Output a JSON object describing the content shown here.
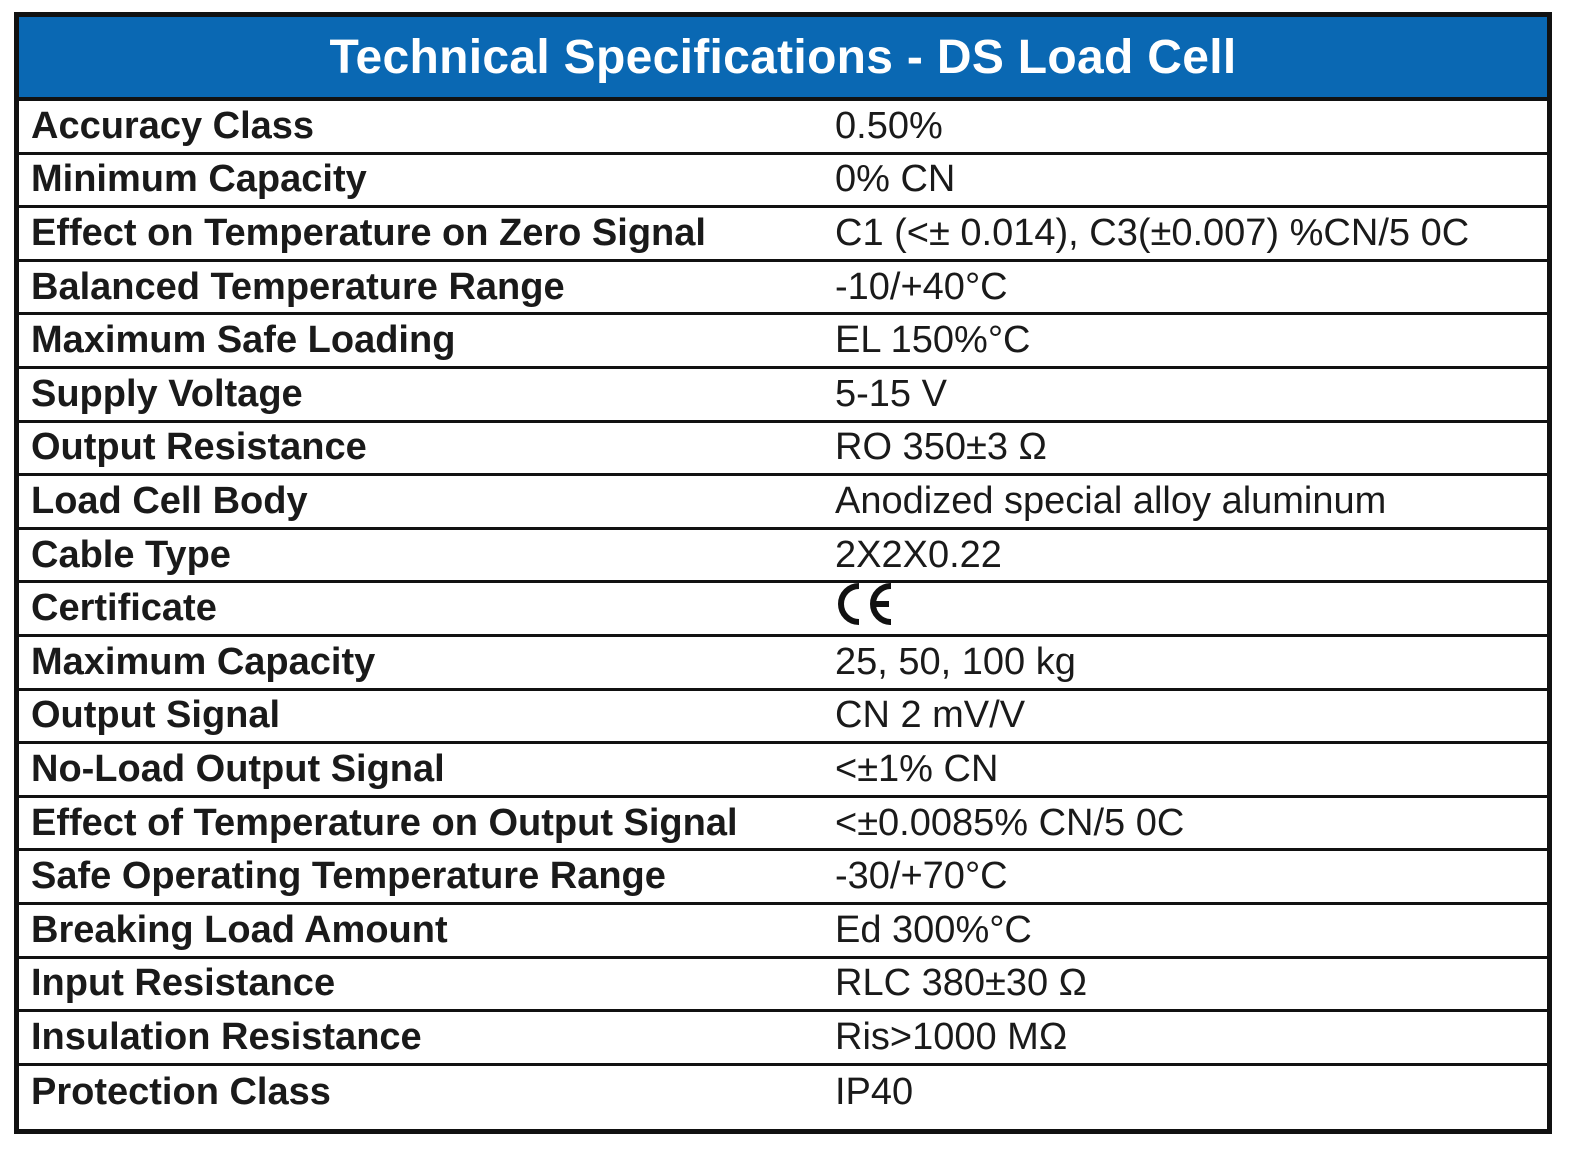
{
  "title": "Technical Specifications - DS Load Cell",
  "colors": {
    "title_background": "#0a68b3",
    "title_text": "#ffffff",
    "border": "#111111"
  },
  "rows": [
    {
      "label": "Accuracy Class",
      "value": "0.50%"
    },
    {
      "label": "Minimum Capacity",
      "value": "0% CN"
    },
    {
      "label": "Effect on Temperature on Zero Signal",
      "value": "C1 (<± 0.014), C3(±0.007) %CN/5 0C"
    },
    {
      "label": "Balanced Temperature Range",
      "value": "-10/+40°C"
    },
    {
      "label": "Maximum Safe Loading",
      "value": "EL 150%°C"
    },
    {
      "label": "Supply Voltage",
      "value": "5-15 V"
    },
    {
      "label": "Output Resistance",
      "value": "RO 350±3 Ω"
    },
    {
      "label": "Load Cell Body",
      "value": "Anodized special alloy aluminum"
    },
    {
      "label": "Cable Type",
      "value": "2X2X0.22"
    },
    {
      "label": "Certificate",
      "value": "CE",
      "icon": "ce-mark-icon"
    },
    {
      "label": "Maximum Capacity",
      "value": "25, 50, 100 kg"
    },
    {
      "label": "Output Signal",
      "value": "CN 2 mV/V"
    },
    {
      "label": "No-Load Output Signal",
      "value": "<±1% CN"
    },
    {
      "label": "Effect of Temperature on Output Signal",
      "value": "<±0.0085% CN/5 0C"
    },
    {
      "label": "Safe Operating Temperature Range",
      "value": "-30/+70°C"
    },
    {
      "label": "Breaking Load Amount",
      "value": "Ed 300%°C"
    },
    {
      "label": "Input Resistance",
      "value": "RLC 380±30 Ω"
    },
    {
      "label": "Insulation Resistance",
      "value": "Ris>1000 MΩ"
    },
    {
      "label": "Protection Class",
      "value": "IP40"
    }
  ]
}
